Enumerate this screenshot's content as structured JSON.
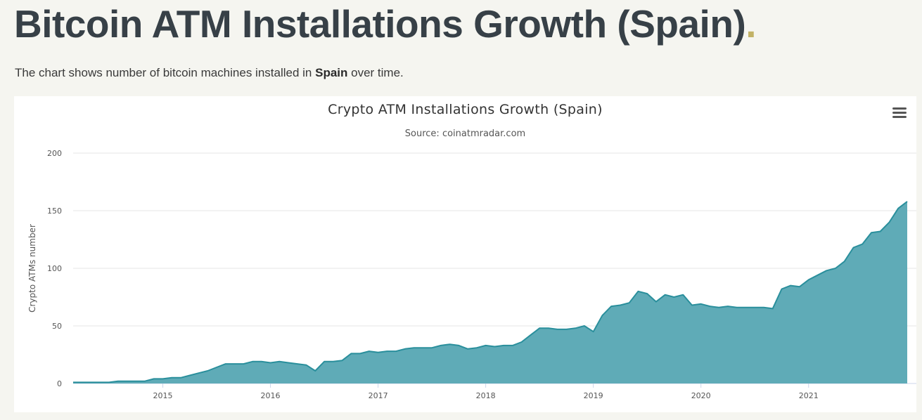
{
  "page": {
    "title": "Bitcoin ATM Installations Growth (Spain)",
    "title_dot": ".",
    "subtitle_prefix": "The chart shows number of bitcoin machines installed in ",
    "subtitle_bold": "Spain",
    "subtitle_suffix": " over time."
  },
  "colors": {
    "area_fill": "#5fabb7",
    "area_line": "#2a8f9c",
    "title_text": "#374047",
    "accent_dot": "#c2b266"
  },
  "icons": {
    "menu": "hamburger-menu-icon"
  },
  "chart_data": {
    "type": "area",
    "title": "Crypto ATM Installations Growth (Spain)",
    "subtitle": "Source: coinatmradar.com",
    "xlabel": "",
    "ylabel": "Crypto ATMs number",
    "ylim": [
      0,
      200
    ],
    "yticks": [
      "0",
      "50",
      "100",
      "150",
      "200"
    ],
    "xlim": [
      "2014-03-01",
      "2021-12-01"
    ],
    "xticks": [
      "2015",
      "2016",
      "2017",
      "2018",
      "2019",
      "2020",
      "2021"
    ],
    "grid": true,
    "legend": "none",
    "series": [
      {
        "x": [
          "2014-03",
          "2014-04",
          "2014-05",
          "2014-06",
          "2014-07",
          "2014-08",
          "2014-09",
          "2014-10",
          "2014-11",
          "2014-12",
          "2015-01",
          "2015-02",
          "2015-03",
          "2015-04",
          "2015-05",
          "2015-06",
          "2015-07",
          "2015-08",
          "2015-09",
          "2015-10",
          "2015-11",
          "2015-12",
          "2016-01",
          "2016-02",
          "2016-03",
          "2016-04",
          "2016-05",
          "2016-06",
          "2016-07",
          "2016-08",
          "2016-09",
          "2016-10",
          "2016-11",
          "2016-12",
          "2017-01",
          "2017-02",
          "2017-03",
          "2017-04",
          "2017-05",
          "2017-06",
          "2017-07",
          "2017-08",
          "2017-09",
          "2017-10",
          "2017-11",
          "2017-12",
          "2018-01",
          "2018-02",
          "2018-03",
          "2018-04",
          "2018-05",
          "2018-06",
          "2018-07",
          "2018-08",
          "2018-09",
          "2018-10",
          "2018-11",
          "2018-12",
          "2019-01",
          "2019-02",
          "2019-03",
          "2019-04",
          "2019-05",
          "2019-06",
          "2019-07",
          "2019-08",
          "2019-09",
          "2019-10",
          "2019-11",
          "2019-12",
          "2020-01",
          "2020-02",
          "2020-03",
          "2020-04",
          "2020-05",
          "2020-06",
          "2020-07",
          "2020-08",
          "2020-09",
          "2020-10",
          "2020-11",
          "2020-12",
          "2021-01",
          "2021-02",
          "2021-03",
          "2021-04",
          "2021-05",
          "2021-06",
          "2021-07",
          "2021-08",
          "2021-09",
          "2021-10",
          "2021-11",
          "2021-12"
        ],
        "y": [
          1,
          1,
          1,
          1,
          1,
          2,
          2,
          2,
          2,
          4,
          4,
          5,
          5,
          7,
          9,
          11,
          14,
          17,
          17,
          17,
          19,
          19,
          18,
          19,
          18,
          17,
          16,
          11,
          19,
          19,
          20,
          26,
          26,
          28,
          27,
          28,
          28,
          30,
          31,
          31,
          31,
          33,
          34,
          33,
          30,
          31,
          33,
          32,
          33,
          33,
          36,
          42,
          48,
          48,
          47,
          47,
          48,
          50,
          45,
          59,
          67,
          68,
          70,
          80,
          78,
          71,
          77,
          75,
          77,
          68,
          69,
          67,
          66,
          67,
          66,
          66,
          66,
          66,
          65,
          82,
          85,
          84,
          90,
          94,
          98,
          100,
          106,
          118,
          121,
          131,
          132,
          140,
          152,
          158
        ]
      }
    ]
  }
}
